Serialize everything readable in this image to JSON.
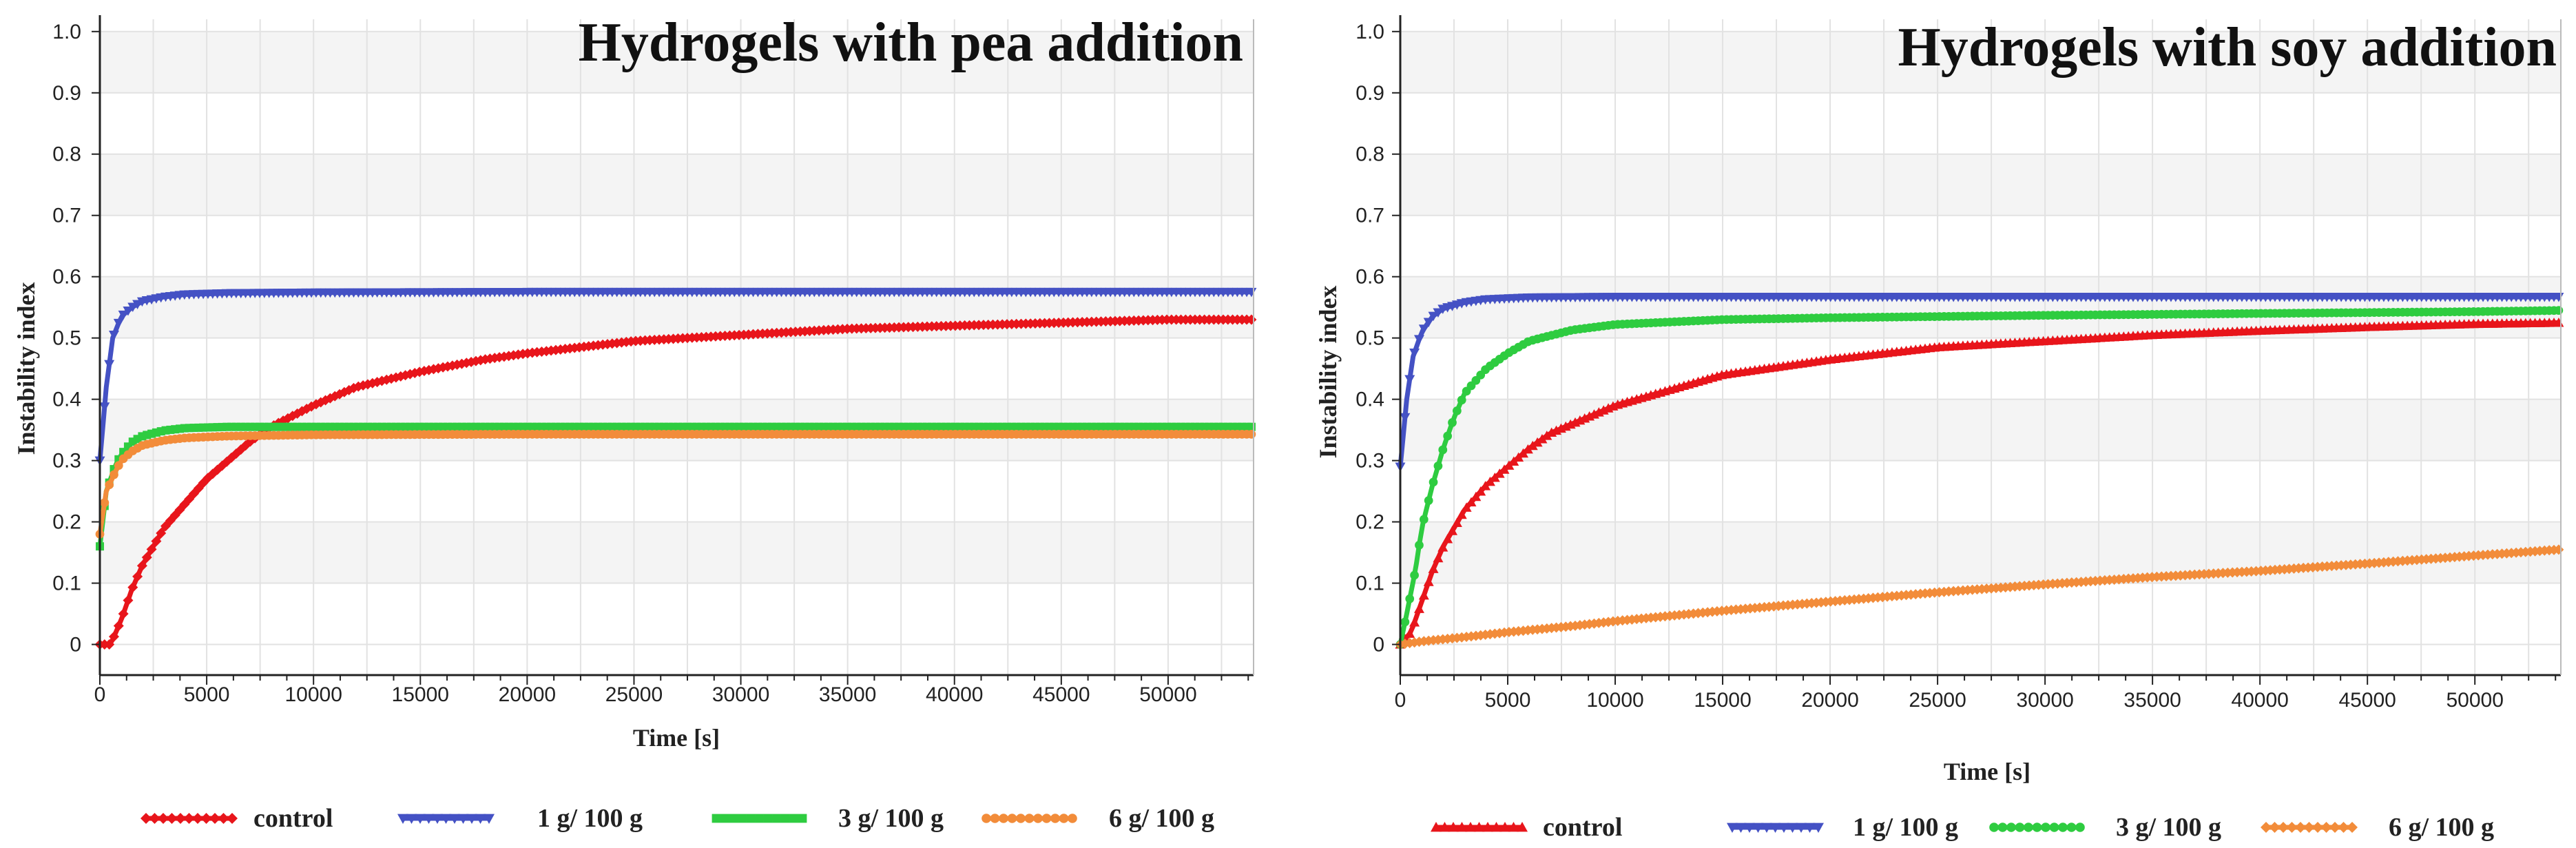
{
  "colors": {
    "control": "#e8151b",
    "c1": "#4451c4",
    "c3": "#2ecc40",
    "c6": "#f28c3a"
  },
  "chart_data": [
    {
      "type": "line",
      "title": "Hydrogels with pea addition",
      "xlabel": "Time [s]",
      "ylabel": "Instability  index",
      "xlim": [
        0,
        54000
      ],
      "ylim": [
        -0.05,
        1.02
      ],
      "xticks": [
        0,
        5000,
        10000,
        15000,
        20000,
        25000,
        30000,
        35000,
        40000,
        45000,
        50000
      ],
      "yticks": [
        0,
        0.1,
        0.2,
        0.3,
        0.4,
        0.5,
        0.6,
        0.7,
        0.8,
        0.9,
        1.0
      ],
      "ytick_labels": [
        "0",
        "0.1",
        "0.2",
        "0.3",
        "0.4",
        "0.5",
        "0.6",
        "0.7",
        "0.8",
        "0.9",
        "1.0"
      ],
      "grid": true,
      "legend_position": "bottom",
      "series": [
        {
          "name": "control",
          "color_key": "control",
          "marker": "diamond",
          "x": [
            0,
            500,
            1000,
            1500,
            2000,
            3000,
            4000,
            5000,
            6000,
            7000,
            8000,
            10000,
            12000,
            15000,
            18000,
            20000,
            25000,
            30000,
            35000,
            40000,
            45000,
            50000,
            54000
          ],
          "values": [
            0.0,
            0.0,
            0.04,
            0.09,
            0.13,
            0.19,
            0.23,
            0.27,
            0.3,
            0.33,
            0.355,
            0.39,
            0.42,
            0.445,
            0.465,
            0.475,
            0.495,
            0.505,
            0.515,
            0.52,
            0.525,
            0.53,
            0.53
          ]
        },
        {
          "name": "1 g/ 100 g",
          "color_key": "c1",
          "marker": "triangle-down",
          "x": [
            0,
            300,
            600,
            1000,
            1500,
            2000,
            3000,
            4000,
            6000,
            10000,
            20000,
            30000,
            40000,
            50000,
            54000
          ],
          "values": [
            0.3,
            0.42,
            0.5,
            0.535,
            0.55,
            0.56,
            0.567,
            0.571,
            0.573,
            0.574,
            0.575,
            0.575,
            0.575,
            0.575,
            0.575
          ]
        },
        {
          "name": "3 g/ 100 g",
          "color_key": "c3",
          "marker": "square",
          "x": [
            0,
            300,
            700,
            1000,
            1500,
            2000,
            3000,
            4000,
            6000,
            10000,
            20000,
            30000,
            40000,
            50000,
            54000
          ],
          "values": [
            0.16,
            0.25,
            0.29,
            0.31,
            0.33,
            0.34,
            0.349,
            0.353,
            0.355,
            0.355,
            0.355,
            0.355,
            0.355,
            0.355,
            0.355
          ]
        },
        {
          "name": "6 g/ 100 g",
          "color_key": "c6",
          "marker": "circle",
          "x": [
            0,
            300,
            700,
            1000,
            1500,
            2000,
            3000,
            4000,
            6000,
            10000,
            20000,
            30000,
            40000,
            50000,
            54000
          ],
          "values": [
            0.18,
            0.25,
            0.28,
            0.3,
            0.315,
            0.325,
            0.333,
            0.337,
            0.34,
            0.342,
            0.343,
            0.343,
            0.343,
            0.343,
            0.343
          ]
        }
      ]
    },
    {
      "type": "line",
      "title": "Hydrogels with soy addition",
      "xlabel": "Time [s]",
      "ylabel": "Instability  index",
      "xlim": [
        0,
        54000
      ],
      "ylim": [
        -0.05,
        1.02
      ],
      "xticks": [
        0,
        5000,
        10000,
        15000,
        20000,
        25000,
        30000,
        35000,
        40000,
        45000,
        50000
      ],
      "yticks": [
        0,
        0.1,
        0.2,
        0.3,
        0.4,
        0.5,
        0.6,
        0.7,
        0.8,
        0.9,
        1.0
      ],
      "ytick_labels": [
        "0",
        "0.1",
        "0.2",
        "0.3",
        "0.4",
        "0.5",
        "0.6",
        "0.7",
        "0.8",
        "0.9",
        "1.0"
      ],
      "grid": true,
      "legend_position": "bottom",
      "series": [
        {
          "name": "control",
          "color_key": "control",
          "marker": "triangle-up",
          "x": [
            0,
            500,
            1000,
            1500,
            2000,
            3000,
            4000,
            5000,
            6000,
            7000,
            8000,
            10000,
            12000,
            15000,
            20000,
            25000,
            30000,
            35000,
            40000,
            45000,
            50000,
            54000
          ],
          "values": [
            0.0,
            0.02,
            0.07,
            0.12,
            0.16,
            0.22,
            0.26,
            0.29,
            0.32,
            0.345,
            0.36,
            0.39,
            0.41,
            0.44,
            0.465,
            0.485,
            0.495,
            0.505,
            0.512,
            0.518,
            0.523,
            0.525
          ]
        },
        {
          "name": "1 g/ 100 g",
          "color_key": "c1",
          "marker": "triangle-down",
          "x": [
            0,
            300,
            600,
            1000,
            1500,
            2000,
            3000,
            4000,
            6000,
            10000,
            20000,
            30000,
            40000,
            50000,
            54000
          ],
          "values": [
            0.29,
            0.4,
            0.47,
            0.51,
            0.535,
            0.548,
            0.558,
            0.563,
            0.566,
            0.567,
            0.567,
            0.567,
            0.567,
            0.567,
            0.567
          ]
        },
        {
          "name": "3 g/ 100 g",
          "color_key": "c3",
          "marker": "circle",
          "x": [
            0,
            300,
            700,
            1000,
            1500,
            2000,
            2500,
            3000,
            4000,
            5000,
            6000,
            8000,
            10000,
            15000,
            20000,
            30000,
            40000,
            50000,
            54000
          ],
          "values": [
            0.0,
            0.05,
            0.12,
            0.19,
            0.26,
            0.32,
            0.37,
            0.41,
            0.45,
            0.475,
            0.495,
            0.513,
            0.522,
            0.53,
            0.533,
            0.537,
            0.54,
            0.543,
            0.545
          ]
        },
        {
          "name": "6 g/ 100 g",
          "color_key": "c6",
          "marker": "diamond",
          "x": [
            0,
            1000,
            3000,
            5000,
            8000,
            10000,
            15000,
            20000,
            25000,
            30000,
            35000,
            40000,
            45000,
            50000,
            54000
          ],
          "values": [
            0.0,
            0.005,
            0.012,
            0.02,
            0.03,
            0.038,
            0.055,
            0.07,
            0.085,
            0.098,
            0.11,
            0.12,
            0.132,
            0.145,
            0.155
          ]
        }
      ]
    }
  ]
}
